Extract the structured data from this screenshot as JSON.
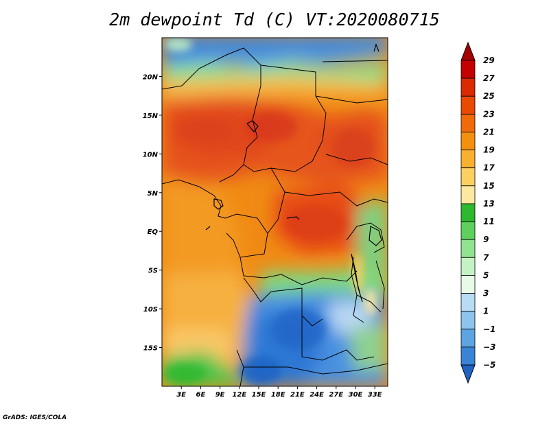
{
  "title": "2m dewpoint Td (C) VT:2020080715",
  "credit": "GrADS: IGES/COLA",
  "map": {
    "variable": "2m dewpoint temperature",
    "units": "C",
    "valid_time": "2020080715",
    "lon_range": [
      0,
      35
    ],
    "lat_range": [
      -20,
      25
    ],
    "lat_ticks": [
      {
        "label": "20N",
        "value": 20
      },
      {
        "label": "15N",
        "value": 15
      },
      {
        "label": "10N",
        "value": 10
      },
      {
        "label": "5N",
        "value": 5
      },
      {
        "label": "EQ",
        "value": 0
      },
      {
        "label": "5S",
        "value": -5
      },
      {
        "label": "10S",
        "value": -10
      },
      {
        "label": "15S",
        "value": -15
      }
    ],
    "lon_ticks": [
      {
        "label": "3E",
        "value": 3
      },
      {
        "label": "6E",
        "value": 6
      },
      {
        "label": "9E",
        "value": 9
      },
      {
        "label": "12E",
        "value": 12
      },
      {
        "label": "15E",
        "value": 15
      },
      {
        "label": "18E",
        "value": 18
      },
      {
        "label": "21E",
        "value": 21
      },
      {
        "label": "24E",
        "value": 24
      },
      {
        "label": "27E",
        "value": 27
      },
      {
        "label": "30E",
        "value": 30
      },
      {
        "label": "33E",
        "value": 33
      }
    ]
  },
  "colorbar": {
    "labels": [
      "29",
      "27",
      "25",
      "23",
      "21",
      "19",
      "17",
      "15",
      "13",
      "11",
      "9",
      "7",
      "5",
      "3",
      "1",
      "−1",
      "−3",
      "−5"
    ],
    "colors": [
      "#a50000",
      "#c40000",
      "#dc2a00",
      "#ea4a00",
      "#f06a0a",
      "#f5900f",
      "#f8b030",
      "#fcd060",
      "#fde8a0",
      "#2db82d",
      "#5dd05d",
      "#90e490",
      "#c4f2c4",
      "#e8fae8",
      "#b8dcf4",
      "#8cc4ec",
      "#5ea4e2",
      "#3a84d8",
      "#1f64c4"
    ]
  }
}
